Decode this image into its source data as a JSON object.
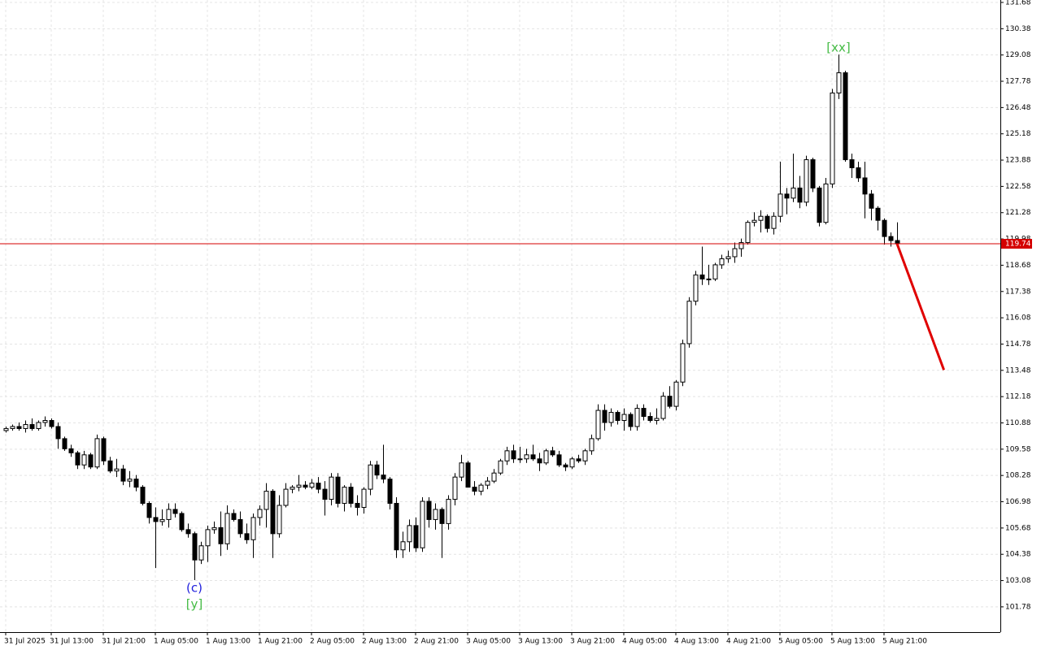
{
  "chart_data": {
    "type": "candlestick",
    "up_color": "#ffffff",
    "down_color": "#000000",
    "wick_color": "#000000",
    "grid": true,
    "xlim": [
      -0.875,
      152.875
    ],
    "ylim": [
      100.53,
      131.8
    ],
    "yticks": [
      131.68,
      130.38,
      129.08,
      127.78,
      126.48,
      125.18,
      123.88,
      122.58,
      121.28,
      119.98,
      118.68,
      117.38,
      116.08,
      114.78,
      113.48,
      112.18,
      110.88,
      109.58,
      108.28,
      106.98,
      105.68,
      104.38,
      103.08,
      101.78
    ],
    "xticks": [
      {
        "value": 0,
        "label": "31 Jul 2025"
      },
      {
        "value": 7,
        "label": "31 Jul 13:00"
      },
      {
        "value": 15,
        "label": "31 Jul 21:00"
      },
      {
        "value": 23,
        "label": "1 Aug 05:00"
      },
      {
        "value": 31,
        "label": "1 Aug 13:00"
      },
      {
        "value": 39,
        "label": "1 Aug 21:00"
      },
      {
        "value": 47,
        "label": "2 Aug 05:00"
      },
      {
        "value": 55,
        "label": "2 Aug 13:00"
      },
      {
        "value": 63,
        "label": "2 Aug 21:00"
      },
      {
        "value": 71,
        "label": "3 Aug 05:00"
      },
      {
        "value": 79,
        "label": "3 Aug 13:00"
      },
      {
        "value": 87,
        "label": "3 Aug 21:00"
      },
      {
        "value": 95,
        "label": "4 Aug 05:00"
      },
      {
        "value": 103,
        "label": "4 Aug 13:00"
      },
      {
        "value": 111,
        "label": "4 Aug 21:00"
      },
      {
        "value": 119,
        "label": "5 Aug 05:00"
      },
      {
        "value": 127,
        "label": "5 Aug 13:00"
      },
      {
        "value": 135,
        "label": "5 Aug 21:00"
      }
    ],
    "current_price": 119.74,
    "current_price_color": "#d40000",
    "forecast": {
      "color": "#e00000",
      "x": [
        137,
        144.2
      ],
      "y": [
        119.74,
        113.5
      ]
    },
    "annotations": [
      {
        "text": "(c)",
        "color": "#2222dd",
        "anchor": "low",
        "row": 0
      },
      {
        "text": "[y]",
        "color": "#44bb44",
        "anchor": "low",
        "row": 1
      },
      {
        "text": "[xx]",
        "color": "#44bb44",
        "anchor": "high",
        "row": 0
      }
    ],
    "candles": [
      [
        110.5,
        110.7,
        110.4,
        110.6
      ],
      [
        110.6,
        110.8,
        110.5,
        110.7
      ],
      [
        110.7,
        110.9,
        110.5,
        110.6
      ],
      [
        110.6,
        111.0,
        110.4,
        110.8
      ],
      [
        110.8,
        111.1,
        110.5,
        110.6
      ],
      [
        110.6,
        111.0,
        110.5,
        110.9
      ],
      [
        110.9,
        111.2,
        110.7,
        111.0
      ],
      [
        111.0,
        111.1,
        110.6,
        110.7
      ],
      [
        110.7,
        110.9,
        109.6,
        110.1
      ],
      [
        110.1,
        110.2,
        109.5,
        109.6
      ],
      [
        109.6,
        109.8,
        109.2,
        109.4
      ],
      [
        109.4,
        109.5,
        108.6,
        108.8
      ],
      [
        108.8,
        109.5,
        108.6,
        109.3
      ],
      [
        109.3,
        109.4,
        108.6,
        108.7
      ],
      [
        108.7,
        110.3,
        108.6,
        110.1
      ],
      [
        110.1,
        110.2,
        108.8,
        109.0
      ],
      [
        109.0,
        109.2,
        108.4,
        108.5
      ],
      [
        108.5,
        109.1,
        108.2,
        108.6
      ],
      [
        108.6,
        108.8,
        107.8,
        108.0
      ],
      [
        108.0,
        108.5,
        107.7,
        108.1
      ],
      [
        108.1,
        108.3,
        107.5,
        107.7
      ],
      [
        107.7,
        107.8,
        106.8,
        106.9
      ],
      [
        106.9,
        107.0,
        105.9,
        106.2
      ],
      [
        106.2,
        106.7,
        103.7,
        106.0
      ],
      [
        106.0,
        106.6,
        105.8,
        106.1
      ],
      [
        106.1,
        106.9,
        105.7,
        106.6
      ],
      [
        106.6,
        106.9,
        106.2,
        106.4
      ],
      [
        106.4,
        106.5,
        105.5,
        105.6
      ],
      [
        105.6,
        105.9,
        105.2,
        105.4
      ],
      [
        105.4,
        105.5,
        103.1,
        104.1
      ],
      [
        104.1,
        105.0,
        103.9,
        104.8
      ],
      [
        104.8,
        105.8,
        104.0,
        105.6
      ],
      [
        105.6,
        106.0,
        105.4,
        105.7
      ],
      [
        105.7,
        106.5,
        104.3,
        104.9
      ],
      [
        104.9,
        106.8,
        104.6,
        106.4
      ],
      [
        106.4,
        106.6,
        106.0,
        106.1
      ],
      [
        106.1,
        106.5,
        105.2,
        105.4
      ],
      [
        105.4,
        105.9,
        104.9,
        105.1
      ],
      [
        105.1,
        106.4,
        104.2,
        106.2
      ],
      [
        106.2,
        106.8,
        105.8,
        106.6
      ],
      [
        106.6,
        107.9,
        105.7,
        107.5
      ],
      [
        107.5,
        107.6,
        104.2,
        105.4
      ],
      [
        105.4,
        107.3,
        105.2,
        106.8
      ],
      [
        106.8,
        107.9,
        106.7,
        107.6
      ],
      [
        107.6,
        107.8,
        107.4,
        107.7
      ],
      [
        107.7,
        108.3,
        107.5,
        107.8
      ],
      [
        107.8,
        108.0,
        107.6,
        107.7
      ],
      [
        107.7,
        108.1,
        107.6,
        107.9
      ],
      [
        107.9,
        108.2,
        107.4,
        107.6
      ],
      [
        107.6,
        108.0,
        106.3,
        107.1
      ],
      [
        107.1,
        108.4,
        106.8,
        108.2
      ],
      [
        108.2,
        108.4,
        106.7,
        106.9
      ],
      [
        106.9,
        107.8,
        106.5,
        107.7
      ],
      [
        107.7,
        107.9,
        106.7,
        106.9
      ],
      [
        106.9,
        107.3,
        106.3,
        106.7
      ],
      [
        106.7,
        107.7,
        106.4,
        107.6
      ],
      [
        107.6,
        109.0,
        107.3,
        108.8
      ],
      [
        108.8,
        109.0,
        108.1,
        108.3
      ],
      [
        108.3,
        109.8,
        107.9,
        108.1
      ],
      [
        108.1,
        108.2,
        106.6,
        106.9
      ],
      [
        106.9,
        107.2,
        104.2,
        104.6
      ],
      [
        104.6,
        105.5,
        104.2,
        105.0
      ],
      [
        105.0,
        106.1,
        104.5,
        105.8
      ],
      [
        105.8,
        106.2,
        104.5,
        104.7
      ],
      [
        104.7,
        107.2,
        104.5,
        107.0
      ],
      [
        107.0,
        107.2,
        105.7,
        106.1
      ],
      [
        106.1,
        106.9,
        105.6,
        106.6
      ],
      [
        106.6,
        106.7,
        104.2,
        105.9
      ],
      [
        105.9,
        107.3,
        105.6,
        107.1
      ],
      [
        107.1,
        108.4,
        106.8,
        108.2
      ],
      [
        108.2,
        109.3,
        108.0,
        108.9
      ],
      [
        108.9,
        109.0,
        107.7,
        107.7
      ],
      [
        107.7,
        108.0,
        107.3,
        107.5
      ],
      [
        107.5,
        107.9,
        107.3,
        107.8
      ],
      [
        107.8,
        108.2,
        107.6,
        108.0
      ],
      [
        108.0,
        108.6,
        107.9,
        108.4
      ],
      [
        108.4,
        109.1,
        108.3,
        109.0
      ],
      [
        109.0,
        109.7,
        108.8,
        109.5
      ],
      [
        109.5,
        109.8,
        108.9,
        109.1
      ],
      [
        109.1,
        109.7,
        108.9,
        109.1
      ],
      [
        109.1,
        109.6,
        108.9,
        109.3
      ],
      [
        109.3,
        109.8,
        109.0,
        109.1
      ],
      [
        109.1,
        109.4,
        108.5,
        108.9
      ],
      [
        108.9,
        109.6,
        108.8,
        109.5
      ],
      [
        109.5,
        109.7,
        109.2,
        109.3
      ],
      [
        109.3,
        109.5,
        108.7,
        108.8
      ],
      [
        108.8,
        108.9,
        108.5,
        108.7
      ],
      [
        108.7,
        109.2,
        108.6,
        109.1
      ],
      [
        109.1,
        109.3,
        108.9,
        109.0
      ],
      [
        109.0,
        109.6,
        108.8,
        109.5
      ],
      [
        109.5,
        110.3,
        109.3,
        110.1
      ],
      [
        110.1,
        111.8,
        110.0,
        111.5
      ],
      [
        111.5,
        111.8,
        110.5,
        110.9
      ],
      [
        110.9,
        111.6,
        110.7,
        111.4
      ],
      [
        111.4,
        111.5,
        110.8,
        111.0
      ],
      [
        111.0,
        111.6,
        110.5,
        111.3
      ],
      [
        111.3,
        111.4,
        110.5,
        110.7
      ],
      [
        110.7,
        111.8,
        110.5,
        111.6
      ],
      [
        111.6,
        111.8,
        111.0,
        111.2
      ],
      [
        111.2,
        111.4,
        110.9,
        111.0
      ],
      [
        111.0,
        111.6,
        110.8,
        111.1
      ],
      [
        111.1,
        112.4,
        111.0,
        112.2
      ],
      [
        112.2,
        112.7,
        111.6,
        111.7
      ],
      [
        111.7,
        113.0,
        111.5,
        112.9
      ],
      [
        112.9,
        115.0,
        112.7,
        114.8
      ],
      [
        114.8,
        117.1,
        114.6,
        116.9
      ],
      [
        116.9,
        118.4,
        116.7,
        118.2
      ],
      [
        118.2,
        119.6,
        117.7,
        118.0
      ],
      [
        118.0,
        118.7,
        117.7,
        118.0
      ],
      [
        118.0,
        118.8,
        117.9,
        118.7
      ],
      [
        118.7,
        119.2,
        118.5,
        119.0
      ],
      [
        119.0,
        119.4,
        118.8,
        119.1
      ],
      [
        119.1,
        119.8,
        118.8,
        119.5
      ],
      [
        119.5,
        120.0,
        119.1,
        119.8
      ],
      [
        119.8,
        120.9,
        119.7,
        120.8
      ],
      [
        120.8,
        121.3,
        120.6,
        120.9
      ],
      [
        120.9,
        121.4,
        120.3,
        121.1
      ],
      [
        121.1,
        121.2,
        120.3,
        120.5
      ],
      [
        120.5,
        121.3,
        120.2,
        121.1
      ],
      [
        121.1,
        123.8,
        120.8,
        122.2
      ],
      [
        122.2,
        122.5,
        121.2,
        122.0
      ],
      [
        122.0,
        124.2,
        121.8,
        122.5
      ],
      [
        122.5,
        123.1,
        121.5,
        121.8
      ],
      [
        121.8,
        124.1,
        121.6,
        123.9
      ],
      [
        123.9,
        124.0,
        122.3,
        122.5
      ],
      [
        122.5,
        122.6,
        120.6,
        120.8
      ],
      [
        120.8,
        123.0,
        120.7,
        122.7
      ],
      [
        122.7,
        127.4,
        122.5,
        127.2
      ],
      [
        127.2,
        129.1,
        126.9,
        128.2
      ],
      [
        128.2,
        128.3,
        123.8,
        123.9
      ],
      [
        123.9,
        124.2,
        123.0,
        123.5
      ],
      [
        123.5,
        123.8,
        122.8,
        123.0
      ],
      [
        123.0,
        123.8,
        121.0,
        122.2
      ],
      [
        122.2,
        122.4,
        120.9,
        121.5
      ],
      [
        121.5,
        121.6,
        120.4,
        120.9
      ],
      [
        120.9,
        121.0,
        119.7,
        120.1
      ],
      [
        120.1,
        120.3,
        119.6,
        119.9
      ],
      [
        119.9,
        120.8,
        119.7,
        119.74
      ]
    ]
  }
}
